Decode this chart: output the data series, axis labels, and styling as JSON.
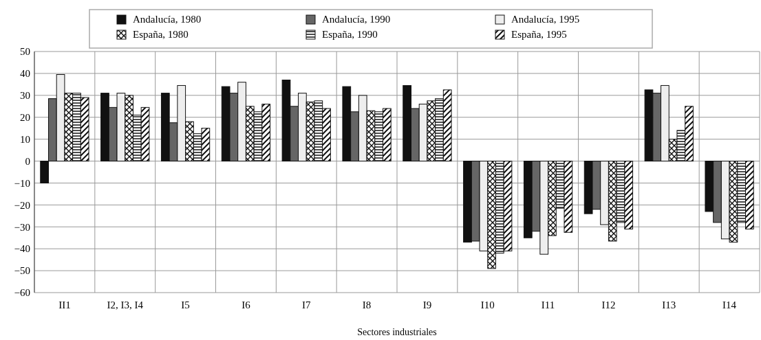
{
  "chart_data": {
    "type": "bar",
    "xlabel": "Sectores industriales",
    "categories": [
      "II1",
      "I2, I3, I4",
      "I5",
      "I6",
      "I7",
      "I8",
      "I9",
      "I10",
      "I11",
      "I12",
      "I13",
      "I14"
    ],
    "series": [
      {
        "name": "Andalucía, 1980",
        "color": "#111111",
        "values": [
          -10,
          31,
          31,
          34,
          37,
          34,
          34.5,
          -37,
          -35,
          -24,
          32.5,
          -23
        ]
      },
      {
        "name": "Andalucía, 1990",
        "color": "#666666",
        "values": [
          28.5,
          24.5,
          17.5,
          31,
          25,
          22.5,
          24,
          -36.5,
          -32,
          -22,
          31,
          -28
        ]
      },
      {
        "name": "Andalucía, 1995",
        "color": "#eeeeee",
        "values": [
          39.5,
          31,
          34.5,
          36,
          31,
          30,
          26,
          -41,
          -42.5,
          -29,
          34.5,
          -35.5
        ]
      },
      {
        "name": "España, 1980",
        "color": "#111111",
        "values": [
          31,
          30,
          18,
          25,
          27,
          23,
          27.5,
          -49,
          -34,
          -36.5,
          10,
          -37
        ]
      },
      {
        "name": "España, 1990",
        "color": "#111111",
        "values": [
          31,
          21,
          12.5,
          22.5,
          27.5,
          22.5,
          28.5,
          -42,
          -21.5,
          -28,
          14,
          -28
        ]
      },
      {
        "name": "España, 1995",
        "color": "#111111",
        "values": [
          29,
          24.5,
          15,
          26,
          24,
          24,
          32.5,
          -41,
          -32.5,
          -31,
          25,
          -31
        ]
      }
    ],
    "ylim": [
      -60,
      50
    ],
    "yticks": [
      50,
      40,
      30,
      20,
      10,
      0,
      -10,
      -20,
      -30,
      -40,
      -50,
      -60
    ],
    "grid": true,
    "legend": "top"
  }
}
